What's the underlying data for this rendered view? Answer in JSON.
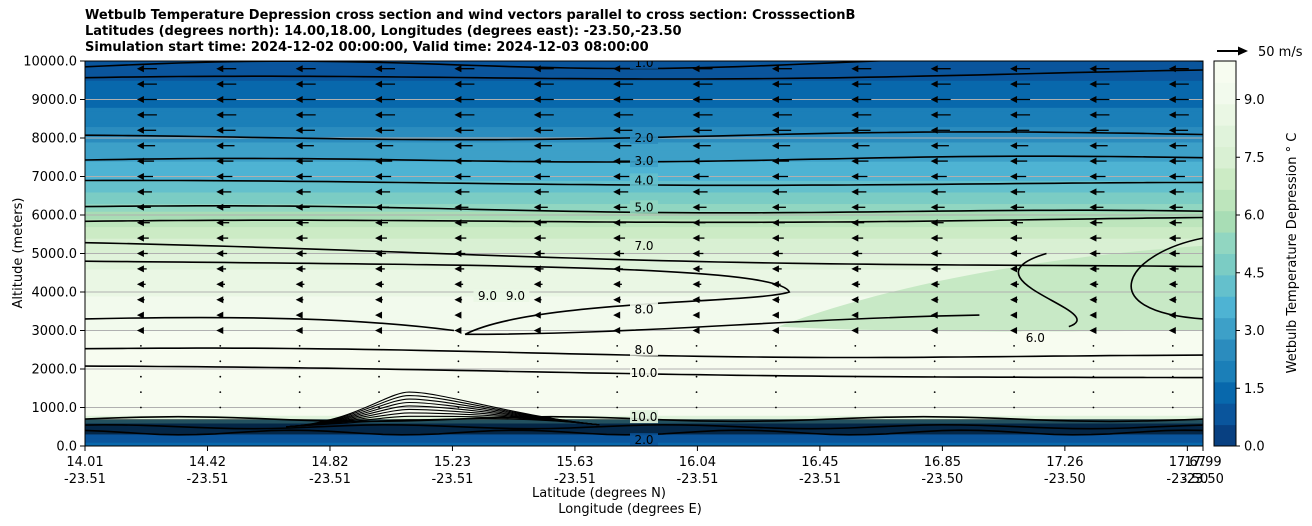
{
  "chart_data": {
    "type": "contourf",
    "title": [
      "Wetbulb Temperature Depression cross section and wind vectors parallel to cross section: CrosssectionB",
      "Latitudes (degrees north): 14.00,18.00, Longitudes (degrees east): -23.50,-23.50",
      "Simulation start time: 2024-12-02 00:00:00, Valid time: 2024-12-03 08:00:00"
    ],
    "ylabel": "Altitude (meters)",
    "xlabel_lat": "Latitude (degrees N)",
    "xlabel_lon": "Longitude (degrees E)",
    "ylim": [
      0,
      10000
    ],
    "yticks": [
      "0.0",
      "1000.0",
      "2000.0",
      "3000.0",
      "4000.0",
      "5000.0",
      "6000.0",
      "7000.0",
      "8000.0",
      "9000.0",
      "10000.0"
    ],
    "xticks": [
      {
        "lat": "14.01",
        "lon": "-23.51"
      },
      {
        "lat": "14.42",
        "lon": "-23.51"
      },
      {
        "lat": "14.82",
        "lon": "-23.51"
      },
      {
        "lat": "15.23",
        "lon": "-23.51"
      },
      {
        "lat": "15.63",
        "lon": "-23.51"
      },
      {
        "lat": "16.04",
        "lon": "-23.51"
      },
      {
        "lat": "16.45",
        "lon": "-23.51"
      },
      {
        "lat": "16.85",
        "lon": "-23.50"
      },
      {
        "lat": "17.26",
        "lon": "-23.50"
      },
      {
        "lat": "17.67",
        "lon": "-23.50"
      },
      {
        "lat": "17.99",
        "lon": "-23.50"
      }
    ],
    "colorbar": {
      "label": "Wetbulb Temperature Depression ° C",
      "range": [
        0,
        10
      ],
      "ticks": [
        "0.0",
        "1.5",
        "3.0",
        "4.5",
        "6.0",
        "7.5",
        "9.0"
      ],
      "colors": [
        "#084081",
        "#0a559c",
        "#0868ac",
        "#1b7fb8",
        "#2b8cbe",
        "#3da0c8",
        "#4eb3d3",
        "#64c0cc",
        "#7bccc4",
        "#91d6c1",
        "#a8ddb5",
        "#bde5bc",
        "#ccebc5",
        "#d9f0d3",
        "#e0f3db",
        "#eaf7e4",
        "#f2faed",
        "#f7fcf0"
      ]
    },
    "contour_labels": [
      {
        "text": "1.0",
        "alt": 9950,
        "x": 0.5
      },
      {
        "text": "2.0",
        "alt": 8000,
        "x": 0.5
      },
      {
        "text": "3.0",
        "alt": 7400,
        "x": 0.5
      },
      {
        "text": "4.0",
        "alt": 6900,
        "x": 0.5
      },
      {
        "text": "5.0",
        "alt": 6200,
        "x": 0.5
      },
      {
        "text": "7.0",
        "alt": 5200,
        "x": 0.5
      },
      {
        "text": "8.0",
        "alt": 3550,
        "x": 0.5
      },
      {
        "text": "8.0",
        "alt": 2500,
        "x": 0.5
      },
      {
        "text": "10.0",
        "alt": 1900,
        "x": 0.5
      },
      {
        "text": "9.0",
        "alt": 3900,
        "x": 0.36
      },
      {
        "text": "9.0",
        "alt": 3900,
        "x": 0.385
      },
      {
        "text": "6.0",
        "alt": 2800,
        "x": 0.85
      },
      {
        "text": "10.0",
        "alt": 750,
        "x": 0.5
      },
      {
        "text": "2.0",
        "alt": 150,
        "x": 0.5
      }
    ],
    "wind_key": "50 m/s"
  }
}
